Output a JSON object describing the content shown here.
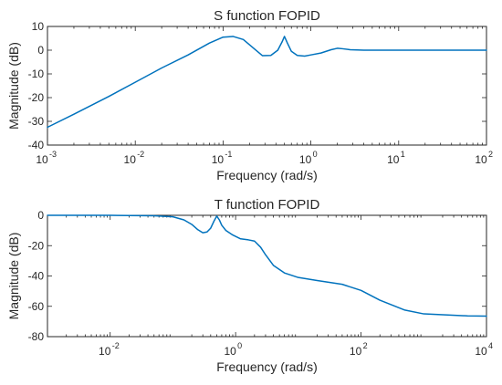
{
  "colors": {
    "line": "#0072BD",
    "axis": "#262626",
    "background": "#ffffff"
  },
  "chart_data": [
    {
      "type": "line",
      "title": "S function FOPID",
      "xlabel": "Frequency  (rad/s)",
      "ylabel": "Magnitude (dB)",
      "xscale": "log",
      "xlim": [
        0.001,
        100
      ],
      "ylim": [
        -40,
        10
      ],
      "grid": false,
      "xticks": [
        {
          "value": 0.001,
          "base": "10",
          "exp": "-3"
        },
        {
          "value": 0.01,
          "base": "10",
          "exp": "-2"
        },
        {
          "value": 0.1,
          "base": "10",
          "exp": "-1"
        },
        {
          "value": 1,
          "base": "10",
          "exp": "0"
        },
        {
          "value": 10,
          "base": "10",
          "exp": "1"
        },
        {
          "value": 100,
          "base": "10",
          "exp": "2"
        }
      ],
      "yticks": [
        {
          "value": 10,
          "label": "10"
        },
        {
          "value": 0,
          "label": "0"
        },
        {
          "value": -10,
          "label": "-10"
        },
        {
          "value": -20,
          "label": "-20"
        },
        {
          "value": -30,
          "label": "-30"
        },
        {
          "value": -40,
          "label": "-40"
        }
      ],
      "series": [
        {
          "x": [
            0.001,
            0.002,
            0.005,
            0.01,
            0.02,
            0.04,
            0.07,
            0.1,
            0.13,
            0.17,
            0.22,
            0.28,
            0.35,
            0.42,
            0.47,
            0.5,
            0.54,
            0.6,
            0.7,
            0.85,
            1.0,
            1.3,
            1.7,
            2.0,
            2.3,
            2.8,
            4,
            8,
            20,
            100
          ],
          "y": [
            -32.5,
            -27,
            -19.5,
            -13.5,
            -7.5,
            -2,
            3,
            5.5,
            5.8,
            4.5,
            1,
            -2.3,
            -2.2,
            0,
            3.5,
            5.8,
            3,
            -0.5,
            -2.2,
            -2.5,
            -2,
            -1.2,
            0.2,
            0.8,
            0.6,
            0.2,
            0,
            0,
            0,
            0
          ]
        }
      ]
    },
    {
      "type": "line",
      "title": "T function FOPID",
      "xlabel": "Frequency  (rad/s)",
      "ylabel": "Magnitude (dB)",
      "xscale": "log",
      "xlim": [
        0.001,
        10000
      ],
      "ylim": [
        -80,
        0
      ],
      "grid": false,
      "xticks": [
        {
          "value": 0.01,
          "base": "10",
          "exp": "-2"
        },
        {
          "value": 1,
          "base": "10",
          "exp": "0"
        },
        {
          "value": 100,
          "base": "10",
          "exp": "2"
        },
        {
          "value": 10000,
          "base": "10",
          "exp": "4"
        }
      ],
      "yticks": [
        {
          "value": 0,
          "label": "0"
        },
        {
          "value": -20,
          "label": "-20"
        },
        {
          "value": -40,
          "label": "-40"
        },
        {
          "value": -60,
          "label": "-60"
        },
        {
          "value": -80,
          "label": "-80"
        }
      ],
      "series": [
        {
          "x": [
            0.001,
            0.01,
            0.05,
            0.1,
            0.15,
            0.2,
            0.25,
            0.3,
            0.35,
            0.4,
            0.45,
            0.5,
            0.55,
            0.6,
            0.7,
            0.9,
            1.2,
            1.6,
            2.0,
            2.5,
            3,
            4,
            6,
            10,
            20,
            50,
            100,
            200,
            500,
            1000,
            5000,
            10000
          ],
          "y": [
            0,
            0,
            -0.3,
            -1,
            -3,
            -6,
            -9.5,
            -11.5,
            -11,
            -8.5,
            -4,
            -0.5,
            -3,
            -6.5,
            -10,
            -13,
            -15.5,
            -16.2,
            -17,
            -21,
            -26,
            -33,
            -38,
            -41,
            -43,
            -45.5,
            -49.5,
            -56,
            -62.5,
            -65,
            -66.3,
            -66.5
          ]
        }
      ]
    }
  ]
}
